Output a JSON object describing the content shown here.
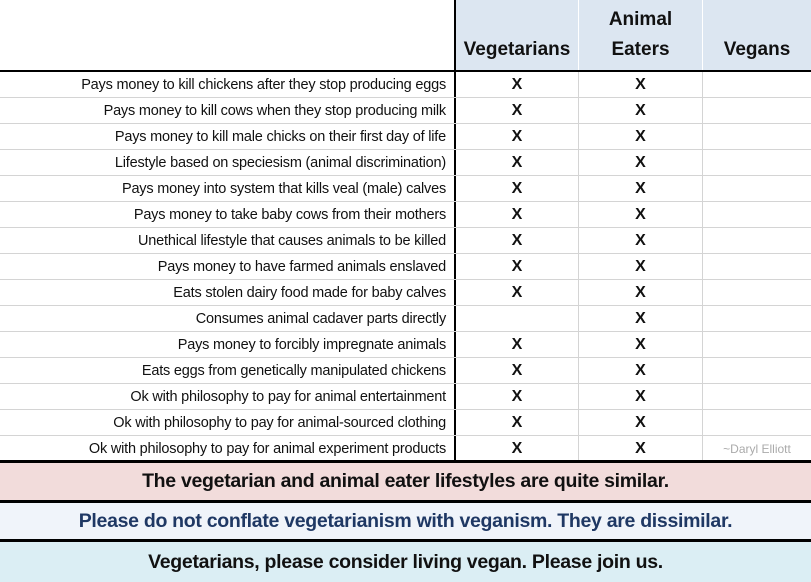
{
  "header": {
    "columns": [
      "Vegetarians",
      "Animal\nEaters",
      "Vegans"
    ]
  },
  "mark": "X",
  "credit": "~Daryl Elliott",
  "rows": [
    {
      "label": "Pays money to kill chickens after they stop producing eggs",
      "vegetarians": true,
      "animal_eaters": true,
      "vegans": false
    },
    {
      "label": "Pays money to kill cows when they stop producing milk",
      "vegetarians": true,
      "animal_eaters": true,
      "vegans": false
    },
    {
      "label": "Pays money to kill male chicks on their first day of life",
      "vegetarians": true,
      "animal_eaters": true,
      "vegans": false
    },
    {
      "label": "Lifestyle based on speciesism (animal discrimination)",
      "vegetarians": true,
      "animal_eaters": true,
      "vegans": false
    },
    {
      "label": "Pays money into system that kills veal (male) calves",
      "vegetarians": true,
      "animal_eaters": true,
      "vegans": false
    },
    {
      "label": "Pays money to take baby cows from their mothers",
      "vegetarians": true,
      "animal_eaters": true,
      "vegans": false
    },
    {
      "label": "Unethical lifestyle that causes animals to be killed",
      "vegetarians": true,
      "animal_eaters": true,
      "vegans": false
    },
    {
      "label": "Pays money to have farmed animals enslaved",
      "vegetarians": true,
      "animal_eaters": true,
      "vegans": false
    },
    {
      "label": "Eats stolen dairy food made for baby calves",
      "vegetarians": true,
      "animal_eaters": true,
      "vegans": false
    },
    {
      "label": "Consumes animal cadaver parts directly",
      "vegetarians": false,
      "animal_eaters": true,
      "vegans": false
    },
    {
      "label": "Pays money to forcibly impregnate animals",
      "vegetarians": true,
      "animal_eaters": true,
      "vegans": false
    },
    {
      "label": "Eats eggs from genetically manipulated chickens",
      "vegetarians": true,
      "animal_eaters": true,
      "vegans": false
    },
    {
      "label": "Ok with philosophy to pay for animal entertainment",
      "vegetarians": true,
      "animal_eaters": true,
      "vegans": false
    },
    {
      "label": "Ok with philosophy to pay for animal-sourced clothing",
      "vegetarians": true,
      "animal_eaters": true,
      "vegans": false
    },
    {
      "label": "Ok with philosophy to pay for animal experiment products",
      "vegetarians": true,
      "animal_eaters": true,
      "vegans": false
    }
  ],
  "footer": {
    "line1": "The vegetarian and animal eater lifestyles are quite similar.",
    "line2": "Please do not conflate vegetarianism with veganism. They are dissimilar.",
    "line3": "Vegetarians, please consider living vegan. Please join us."
  },
  "colors": {
    "header_bg": "#dce6f1",
    "band1_bg": "#f2dcdb",
    "band2_bg": "#f0f4fa",
    "band2_text": "#1f3864",
    "band3_bg": "#dbeef4"
  }
}
